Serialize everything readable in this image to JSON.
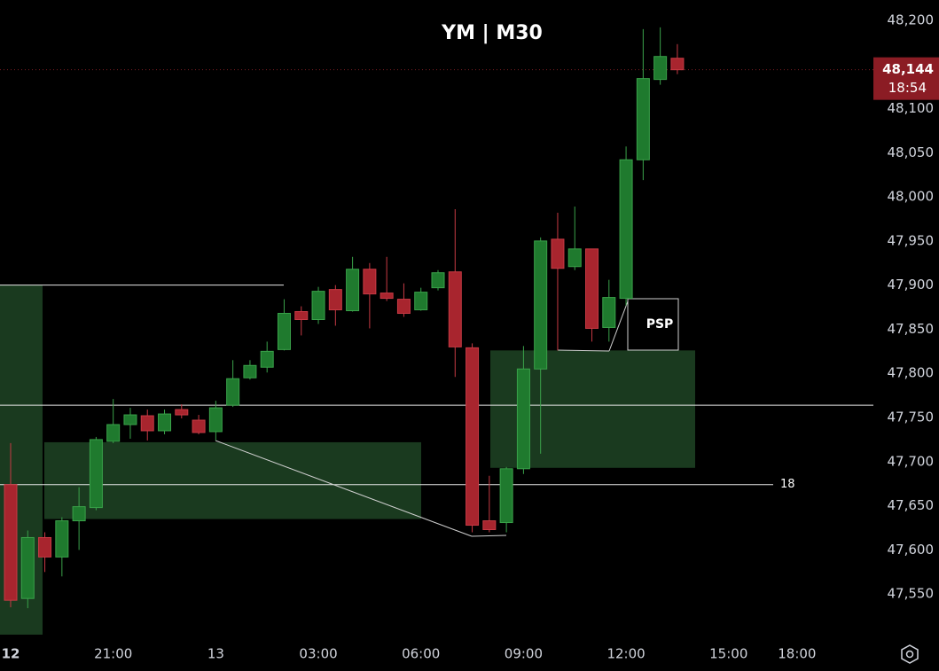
{
  "chart_data": {
    "type": "candlestick",
    "title": "YM | M30",
    "categories": [
      "12",
      null,
      null,
      null,
      null,
      null,
      "21:00",
      null,
      null,
      null,
      null,
      null,
      "13",
      null,
      null,
      null,
      null,
      null,
      "03:00",
      null,
      null,
      null,
      null,
      null,
      "06:00",
      null,
      null,
      null,
      null,
      null,
      "09:00",
      null,
      null,
      null,
      null,
      null,
      "12:00",
      null,
      null,
      null,
      null,
      null,
      "15:00",
      null,
      null,
      null,
      "18:00"
    ],
    "open": [
      47674,
      47545,
      47614,
      47592,
      47633,
      47648,
      47723,
      47742,
      47752,
      47735,
      47759,
      47747,
      47734,
      47764,
      47795,
      47807,
      47827,
      47870,
      47861,
      47895,
      47871,
      47918,
      47891,
      47884,
      47872,
      47897,
      47915,
      47829,
      47633,
      47631,
      47692,
      47805,
      47952,
      47921,
      47941,
      47852,
      47885,
      48042,
      48133,
      48157,
      null,
      null,
      null,
      null,
      null,
      null,
      null
    ],
    "high": [
      47721,
      47622,
      47620,
      47637,
      47671,
      47728,
      47771,
      47761,
      47759,
      47759,
      47765,
      47753,
      47769,
      47815,
      47815,
      47836,
      47884,
      47876,
      47898,
      47900,
      47932,
      47925,
      47932,
      47902,
      47897,
      47917,
      47986,
      47834,
      47684,
      47694,
      47831,
      47954,
      47982,
      47989,
      47941,
      47906,
      48057,
      48190,
      48192,
      48173,
      null,
      null,
      null,
      null,
      null,
      null,
      null
    ],
    "low": [
      47535,
      47534,
      47575,
      47570,
      47600,
      47645,
      47721,
      47726,
      47724,
      47731,
      47749,
      47731,
      47724,
      47762,
      47793,
      47801,
      47826,
      47843,
      47856,
      47854,
      47870,
      47851,
      47882,
      47864,
      47871,
      47894,
      47796,
      47620,
      47620,
      47620,
      47686,
      47709,
      47826,
      47917,
      47836,
      47836,
      47877,
      48019,
      48127,
      48139,
      null,
      null,
      null,
      null,
      null,
      null,
      null
    ],
    "close": [
      47543,
      47614,
      47592,
      47633,
      47649,
      47725,
      47742,
      47753,
      47735,
      47754,
      47753,
      47733,
      47761,
      47794,
      47809,
      47825,
      47868,
      47861,
      47893,
      47872,
      47918,
      47890,
      47885,
      47868,
      47892,
      47914,
      47830,
      47628,
      47623,
      47692,
      47805,
      47950,
      47919,
      47941,
      47851,
      47886,
      48042,
      48134,
      48159,
      48144,
      null,
      null,
      null,
      null,
      null,
      null,
      null
    ],
    "up_color": "#1f7a2e",
    "down_color": "#a8252e",
    "ylim": [
      47502,
      48223
    ],
    "yticks": [
      {
        "value": 47550,
        "label": "47,550"
      },
      {
        "value": 47600,
        "label": "47,600"
      },
      {
        "value": 47650,
        "label": "47,650"
      },
      {
        "value": 47700,
        "label": "47,700"
      },
      {
        "value": 47750,
        "label": "47,750"
      },
      {
        "value": 47800,
        "label": "47,800"
      },
      {
        "value": 47850,
        "label": "47,850"
      },
      {
        "value": 47900,
        "label": "47,900"
      },
      {
        "value": 47950,
        "label": "47,950"
      },
      {
        "value": 48000,
        "label": "48,000"
      },
      {
        "value": 48050,
        "label": "48,050"
      },
      {
        "value": 48100,
        "label": "48,100"
      },
      {
        "value": 48150,
        "label": "48,150"
      },
      {
        "value": 48200,
        "label": "48,200"
      }
    ],
    "last_price": {
      "value": 48144,
      "label": "48,144"
    },
    "countdown": "18:54",
    "levels": [
      47900,
      47764,
      {
        "value": 47674,
        "label": "18"
      }
    ],
    "zones": [
      {
        "low": 47504,
        "high": 47900
      },
      {
        "low": 47635,
        "high": 47722
      },
      {
        "low": 47693,
        "high": 47826
      }
    ],
    "annotation": "PSP"
  }
}
